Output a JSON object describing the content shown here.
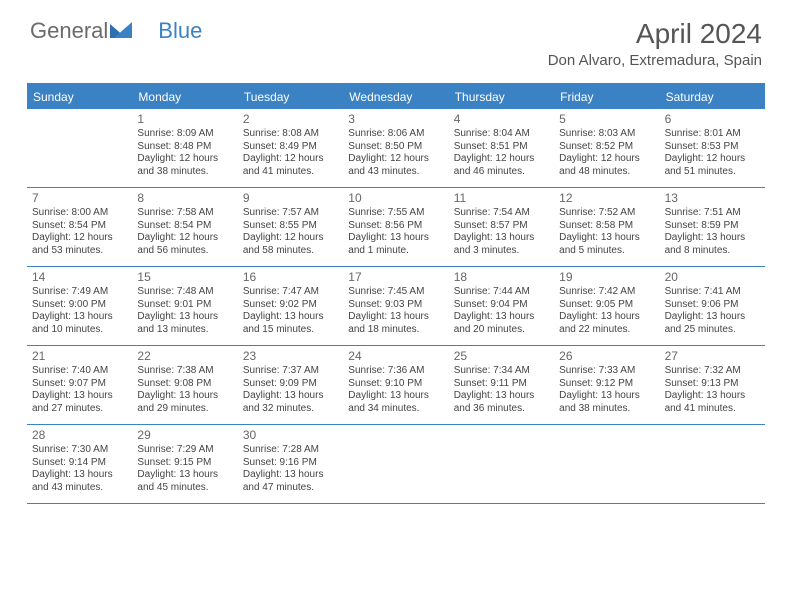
{
  "brand": {
    "part1": "General",
    "part2": "Blue"
  },
  "title": "April 2024",
  "location": "Don Alvaro, Extremadura, Spain",
  "colors": {
    "accent": "#3b82c4",
    "text": "#444444",
    "heading": "#555555",
    "bg": "#ffffff"
  },
  "calendar": {
    "type": "table",
    "weekdays": [
      "Sunday",
      "Monday",
      "Tuesday",
      "Wednesday",
      "Thursday",
      "Friday",
      "Saturday"
    ],
    "font": {
      "cell_pt": 10,
      "daynum_pt": 12,
      "header_pt": 12,
      "title_pt": 28
    },
    "weeks": [
      [
        null,
        {
          "n": "1",
          "sr": "Sunrise: 8:09 AM",
          "ss": "Sunset: 8:48 PM",
          "d1": "Daylight: 12 hours",
          "d2": "and 38 minutes."
        },
        {
          "n": "2",
          "sr": "Sunrise: 8:08 AM",
          "ss": "Sunset: 8:49 PM",
          "d1": "Daylight: 12 hours",
          "d2": "and 41 minutes."
        },
        {
          "n": "3",
          "sr": "Sunrise: 8:06 AM",
          "ss": "Sunset: 8:50 PM",
          "d1": "Daylight: 12 hours",
          "d2": "and 43 minutes."
        },
        {
          "n": "4",
          "sr": "Sunrise: 8:04 AM",
          "ss": "Sunset: 8:51 PM",
          "d1": "Daylight: 12 hours",
          "d2": "and 46 minutes."
        },
        {
          "n": "5",
          "sr": "Sunrise: 8:03 AM",
          "ss": "Sunset: 8:52 PM",
          "d1": "Daylight: 12 hours",
          "d2": "and 48 minutes."
        },
        {
          "n": "6",
          "sr": "Sunrise: 8:01 AM",
          "ss": "Sunset: 8:53 PM",
          "d1": "Daylight: 12 hours",
          "d2": "and 51 minutes."
        }
      ],
      [
        {
          "n": "7",
          "sr": "Sunrise: 8:00 AM",
          "ss": "Sunset: 8:54 PM",
          "d1": "Daylight: 12 hours",
          "d2": "and 53 minutes."
        },
        {
          "n": "8",
          "sr": "Sunrise: 7:58 AM",
          "ss": "Sunset: 8:54 PM",
          "d1": "Daylight: 12 hours",
          "d2": "and 56 minutes."
        },
        {
          "n": "9",
          "sr": "Sunrise: 7:57 AM",
          "ss": "Sunset: 8:55 PM",
          "d1": "Daylight: 12 hours",
          "d2": "and 58 minutes."
        },
        {
          "n": "10",
          "sr": "Sunrise: 7:55 AM",
          "ss": "Sunset: 8:56 PM",
          "d1": "Daylight: 13 hours",
          "d2": "and 1 minute."
        },
        {
          "n": "11",
          "sr": "Sunrise: 7:54 AM",
          "ss": "Sunset: 8:57 PM",
          "d1": "Daylight: 13 hours",
          "d2": "and 3 minutes."
        },
        {
          "n": "12",
          "sr": "Sunrise: 7:52 AM",
          "ss": "Sunset: 8:58 PM",
          "d1": "Daylight: 13 hours",
          "d2": "and 5 minutes."
        },
        {
          "n": "13",
          "sr": "Sunrise: 7:51 AM",
          "ss": "Sunset: 8:59 PM",
          "d1": "Daylight: 13 hours",
          "d2": "and 8 minutes."
        }
      ],
      [
        {
          "n": "14",
          "sr": "Sunrise: 7:49 AM",
          "ss": "Sunset: 9:00 PM",
          "d1": "Daylight: 13 hours",
          "d2": "and 10 minutes."
        },
        {
          "n": "15",
          "sr": "Sunrise: 7:48 AM",
          "ss": "Sunset: 9:01 PM",
          "d1": "Daylight: 13 hours",
          "d2": "and 13 minutes."
        },
        {
          "n": "16",
          "sr": "Sunrise: 7:47 AM",
          "ss": "Sunset: 9:02 PM",
          "d1": "Daylight: 13 hours",
          "d2": "and 15 minutes."
        },
        {
          "n": "17",
          "sr": "Sunrise: 7:45 AM",
          "ss": "Sunset: 9:03 PM",
          "d1": "Daylight: 13 hours",
          "d2": "and 18 minutes."
        },
        {
          "n": "18",
          "sr": "Sunrise: 7:44 AM",
          "ss": "Sunset: 9:04 PM",
          "d1": "Daylight: 13 hours",
          "d2": "and 20 minutes."
        },
        {
          "n": "19",
          "sr": "Sunrise: 7:42 AM",
          "ss": "Sunset: 9:05 PM",
          "d1": "Daylight: 13 hours",
          "d2": "and 22 minutes."
        },
        {
          "n": "20",
          "sr": "Sunrise: 7:41 AM",
          "ss": "Sunset: 9:06 PM",
          "d1": "Daylight: 13 hours",
          "d2": "and 25 minutes."
        }
      ],
      [
        {
          "n": "21",
          "sr": "Sunrise: 7:40 AM",
          "ss": "Sunset: 9:07 PM",
          "d1": "Daylight: 13 hours",
          "d2": "and 27 minutes."
        },
        {
          "n": "22",
          "sr": "Sunrise: 7:38 AM",
          "ss": "Sunset: 9:08 PM",
          "d1": "Daylight: 13 hours",
          "d2": "and 29 minutes."
        },
        {
          "n": "23",
          "sr": "Sunrise: 7:37 AM",
          "ss": "Sunset: 9:09 PM",
          "d1": "Daylight: 13 hours",
          "d2": "and 32 minutes."
        },
        {
          "n": "24",
          "sr": "Sunrise: 7:36 AM",
          "ss": "Sunset: 9:10 PM",
          "d1": "Daylight: 13 hours",
          "d2": "and 34 minutes."
        },
        {
          "n": "25",
          "sr": "Sunrise: 7:34 AM",
          "ss": "Sunset: 9:11 PM",
          "d1": "Daylight: 13 hours",
          "d2": "and 36 minutes."
        },
        {
          "n": "26",
          "sr": "Sunrise: 7:33 AM",
          "ss": "Sunset: 9:12 PM",
          "d1": "Daylight: 13 hours",
          "d2": "and 38 minutes."
        },
        {
          "n": "27",
          "sr": "Sunrise: 7:32 AM",
          "ss": "Sunset: 9:13 PM",
          "d1": "Daylight: 13 hours",
          "d2": "and 41 minutes."
        }
      ],
      [
        {
          "n": "28",
          "sr": "Sunrise: 7:30 AM",
          "ss": "Sunset: 9:14 PM",
          "d1": "Daylight: 13 hours",
          "d2": "and 43 minutes."
        },
        {
          "n": "29",
          "sr": "Sunrise: 7:29 AM",
          "ss": "Sunset: 9:15 PM",
          "d1": "Daylight: 13 hours",
          "d2": "and 45 minutes."
        },
        {
          "n": "30",
          "sr": "Sunrise: 7:28 AM",
          "ss": "Sunset: 9:16 PM",
          "d1": "Daylight: 13 hours",
          "d2": "and 47 minutes."
        },
        null,
        null,
        null,
        null
      ]
    ]
  }
}
